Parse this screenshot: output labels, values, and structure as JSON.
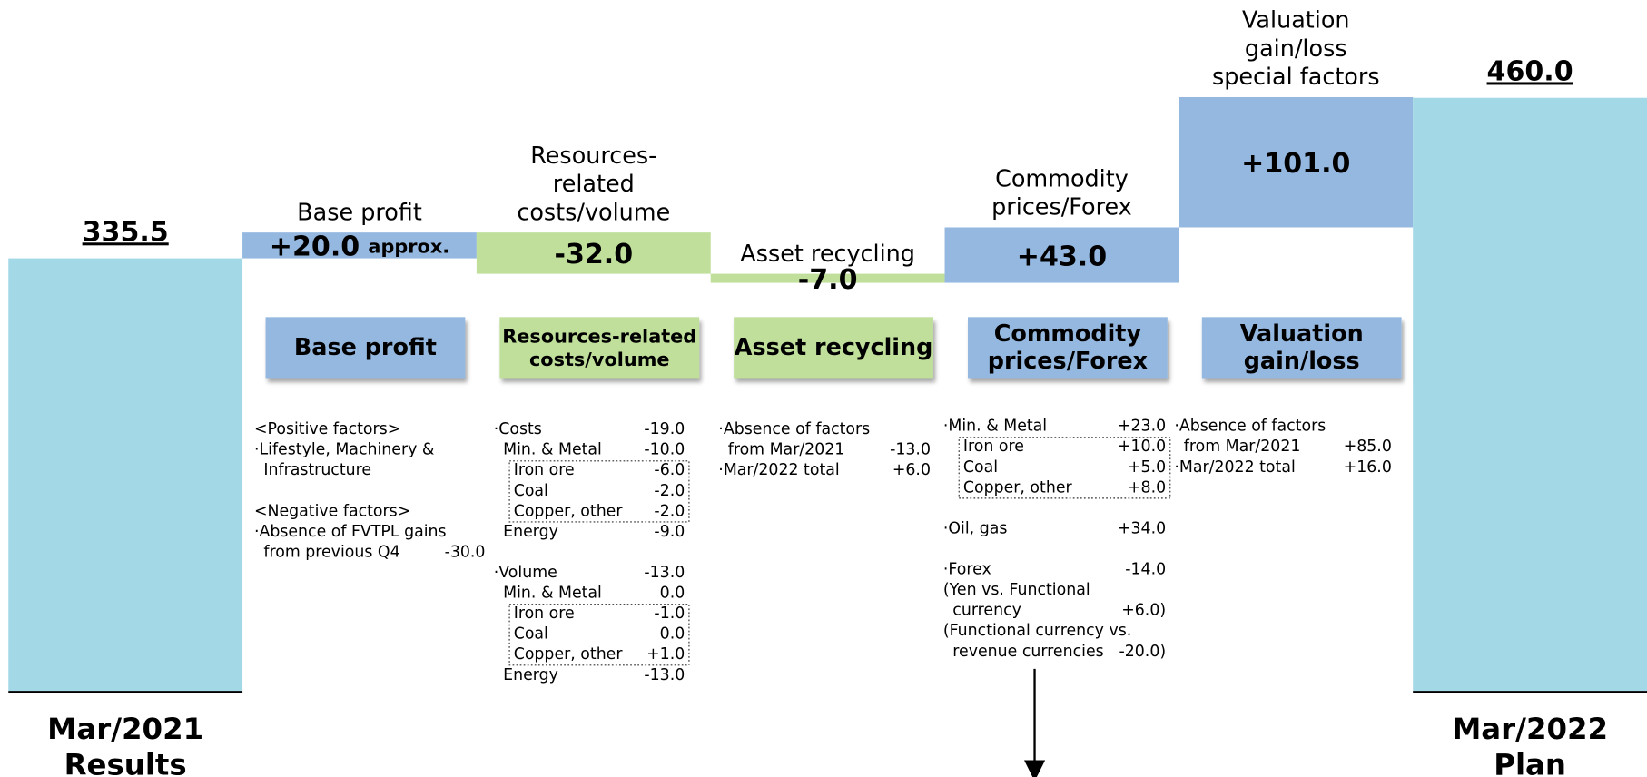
{
  "chart_data": {
    "type": "waterfall",
    "categories": [
      [
        "Mar/2021",
        "Results"
      ],
      [
        "Base profit"
      ],
      [
        "Resources-",
        "related",
        "costs/volume"
      ],
      [
        "Asset recycling"
      ],
      [
        "Commodity",
        "prices/Forex"
      ],
      [
        "Valuation",
        "gain/loss",
        "special factors"
      ],
      [
        "Mar/2022",
        "Plan"
      ]
    ],
    "values": [
      335.5,
      20.0,
      -32.0,
      -7.0,
      43.0,
      101.0,
      460.0
    ],
    "value_labels": [
      "335.5",
      "+20.0",
      "-32.0",
      "-7.0",
      "+43.0",
      "+101.0",
      "460.0"
    ],
    "annotations": [
      "approx."
    ],
    "measures": [
      "absolute",
      "relative",
      "relative",
      "relative",
      "relative",
      "relative",
      "total"
    ],
    "colors": [
      "#a3d8e6",
      "#95b8e0",
      "#bfdf9a",
      "#bfdf9a",
      "#95b8e0",
      "#95b8e0",
      "#a3d8e6"
    ],
    "ylim": [
      0,
      500
    ]
  },
  "panels": [
    {
      "title": [
        "Base profit"
      ],
      "groups": [
        [
          {
            "text": "<Positive factors>",
            "level": 0
          },
          {
            "text": "·Lifestyle, Machinery &",
            "level": 0
          },
          {
            "text": "Infrastructure",
            "level": 1
          }
        ],
        [
          {
            "text": "<Negative factors>",
            "level": 0
          },
          {
            "text": "·Absence of FVTPL gains",
            "level": 0
          },
          {
            "text": "from previous Q4",
            "level": 1,
            "value": "-30.0"
          }
        ]
      ]
    },
    {
      "title": [
        "Resources-related",
        "costs/volume"
      ],
      "groups": [
        [
          {
            "text": "·Costs",
            "level": 0,
            "value": "-19.0"
          },
          {
            "text": "Min. & Metal",
            "level": 1,
            "value": "-10.0"
          },
          {
            "text": "Iron ore",
            "level": 2,
            "value": "-6.0"
          },
          {
            "text": "Coal",
            "level": 2,
            "value": "-2.0"
          },
          {
            "text": "Copper, other",
            "level": 2,
            "value": "-2.0"
          },
          {
            "text": "Energy",
            "level": 1,
            "value": "-9.0"
          }
        ],
        [
          {
            "text": "·Volume",
            "level": 0,
            "value": "-13.0"
          },
          {
            "text": "Min. & Metal",
            "level": 1,
            "value": "0.0"
          },
          {
            "text": "Iron ore",
            "level": 2,
            "value": "-1.0"
          },
          {
            "text": "Coal",
            "level": 2,
            "value": "0.0"
          },
          {
            "text": "Copper, other",
            "level": 2,
            "value": "+1.0"
          },
          {
            "text": "Energy",
            "level": 1,
            "value": "-13.0"
          }
        ]
      ]
    },
    {
      "title": [
        "Asset recycling"
      ],
      "groups": [
        [
          {
            "text": "·Absence of factors",
            "level": 0
          },
          {
            "text": "from Mar/2021",
            "level": 1,
            "value": "-13.0"
          },
          {
            "text": "·Mar/2022 total",
            "level": 0,
            "value": "+6.0"
          }
        ]
      ]
    },
    {
      "title": [
        "Commodity",
        "prices/Forex"
      ],
      "groups": [
        [
          {
            "text": "·Min. & Metal",
            "level": 0,
            "value": "+23.0"
          },
          {
            "text": "Iron ore",
            "level": 2,
            "value": "+10.0"
          },
          {
            "text": "Coal",
            "level": 2,
            "value": "+5.0"
          },
          {
            "text": "Copper, other",
            "level": 2,
            "value": "+8.0"
          }
        ],
        [
          {
            "text": "·Oil, gas",
            "level": 0,
            "value": "+34.0"
          }
        ],
        [
          {
            "text": "·Forex",
            "level": 0,
            "value": "-14.0"
          },
          {
            "text": "(Yen vs. Functional",
            "level": 0
          },
          {
            "text": "currency",
            "level": 1,
            "value": "+6.0)"
          },
          {
            "text": "(Functional currency vs.",
            "level": 0
          },
          {
            "text": "revenue currencies",
            "level": 1,
            "value": "-20.0)"
          }
        ]
      ]
    },
    {
      "title": [
        "Valuation",
        "gain/loss"
      ],
      "groups": [
        [
          {
            "text": "·Absence of factors",
            "level": 0
          },
          {
            "text": "from Mar/2021",
            "level": 1,
            "value": "+85.0"
          },
          {
            "text": "·Mar/2022 total",
            "level": 0,
            "value": "+16.0"
          }
        ]
      ]
    }
  ]
}
